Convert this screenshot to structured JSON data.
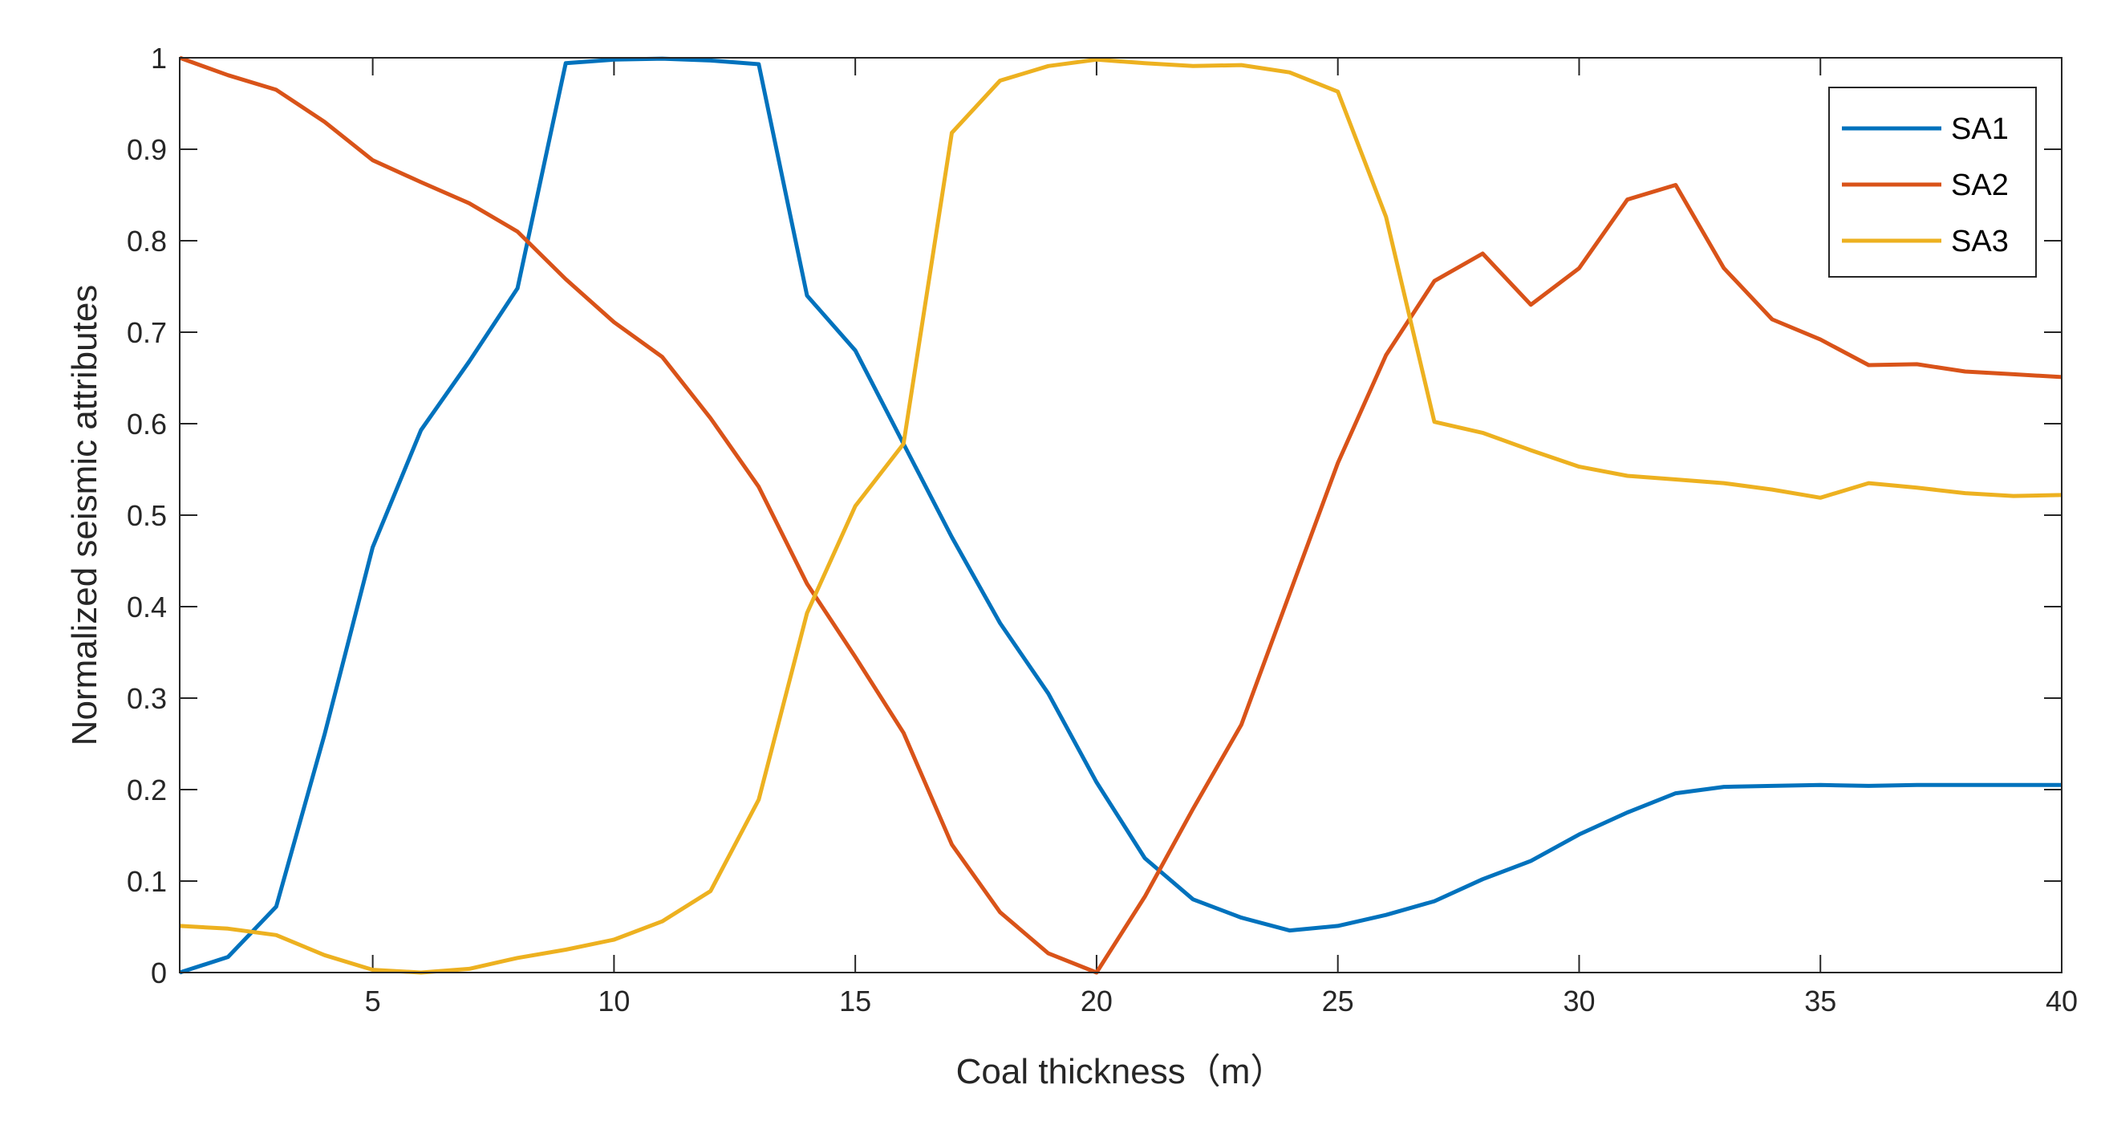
{
  "chart_data": {
    "type": "line",
    "title": "",
    "xlabel": "Coal thickness（m）",
    "ylabel": "Normalized seismic attributes",
    "xlim": [
      1,
      40
    ],
    "ylim": [
      0,
      1
    ],
    "xticks": [
      5,
      10,
      15,
      20,
      25,
      30,
      35,
      40
    ],
    "xtick_labels": [
      "5",
      "10",
      "15",
      "20",
      "25",
      "30",
      "35",
      "40"
    ],
    "yticks": [
      0,
      0.1,
      0.2,
      0.3,
      0.4,
      0.5,
      0.6,
      0.7,
      0.8,
      0.9,
      1
    ],
    "ytick_labels": [
      "0",
      "0.1",
      "0.2",
      "0.3",
      "0.4",
      "0.5",
      "0.6",
      "0.7",
      "0.8",
      "0.9",
      "1"
    ],
    "grid": false,
    "legend_position": "top-right",
    "x": [
      1,
      2,
      3,
      4,
      5,
      6,
      7,
      8,
      9,
      10,
      11,
      12,
      13,
      14,
      15,
      16,
      17,
      18,
      19,
      20,
      21,
      22,
      23,
      24,
      25,
      26,
      27,
      28,
      29,
      30,
      31,
      32,
      33,
      34,
      35,
      36,
      37,
      38,
      39,
      40
    ],
    "series": [
      {
        "name": "SA1",
        "color": "#0072BD",
        "values": [
          0.0,
          0.017,
          0.072,
          0.26,
          0.465,
          0.593,
          0.668,
          0.748,
          0.994,
          0.998,
          0.999,
          0.997,
          0.993,
          0.74,
          0.68,
          0.578,
          0.476,
          0.382,
          0.305,
          0.208,
          0.125,
          0.08,
          0.06,
          0.046,
          0.051,
          0.063,
          0.078,
          0.102,
          0.122,
          0.151,
          0.175,
          0.196,
          0.203,
          0.204,
          0.205,
          0.204,
          0.205,
          0.205,
          0.205,
          0.205
        ]
      },
      {
        "name": "SA2",
        "color": "#D95319",
        "values": [
          1.0,
          0.981,
          0.965,
          0.93,
          0.888,
          0.864,
          0.841,
          0.81,
          0.758,
          0.711,
          0.673,
          0.606,
          0.531,
          0.425,
          0.345,
          0.262,
          0.14,
          0.066,
          0.021,
          0.0,
          0.083,
          0.179,
          0.271,
          0.414,
          0.557,
          0.675,
          0.756,
          0.786,
          0.73,
          0.77,
          0.845,
          0.861,
          0.77,
          0.714,
          0.692,
          0.664,
          0.665,
          0.657,
          0.654,
          0.651
        ]
      },
      {
        "name": "SA3",
        "color": "#EDB120",
        "values": [
          0.051,
          0.048,
          0.041,
          0.019,
          0.003,
          0.0,
          0.004,
          0.016,
          0.025,
          0.036,
          0.056,
          0.089,
          0.189,
          0.393,
          0.51,
          0.578,
          0.918,
          0.975,
          0.991,
          0.998,
          0.994,
          0.991,
          0.992,
          0.984,
          0.963,
          0.826,
          0.602,
          0.59,
          0.571,
          0.553,
          0.543,
          0.539,
          0.535,
          0.528,
          0.519,
          0.535,
          0.53,
          0.524,
          0.521,
          0.522
        ]
      }
    ]
  }
}
